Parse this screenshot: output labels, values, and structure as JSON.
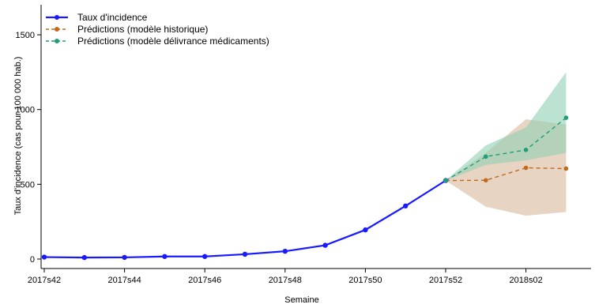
{
  "chart_data": {
    "type": "line",
    "xlabel": "Semaine",
    "ylabel": "Taux d'incidence (cas pour 100 000 hab.)",
    "x_ticks": [
      "2017s42",
      "2017s44",
      "2017s46",
      "2017s48",
      "2017s50",
      "2017s52",
      "2018s02"
    ],
    "y_ticks": [
      0,
      500,
      1000,
      1500
    ],
    "weeks": [
      "2017s42",
      "2017s43",
      "2017s44",
      "2017s45",
      "2017s46",
      "2017s47",
      "2017s48",
      "2017s49",
      "2017s50",
      "2017s51",
      "2017s52",
      "2018s01",
      "2018s02",
      "2018s03"
    ],
    "ylim": [
      -50,
      1700
    ],
    "legend_position": "top-left",
    "series": [
      {
        "name": "Taux d'incidence",
        "color": "#1a1aff",
        "style": "solid",
        "x": [
          "2017s42",
          "2017s43",
          "2017s44",
          "2017s45",
          "2017s46",
          "2017s47",
          "2017s48",
          "2017s49",
          "2017s50",
          "2017s51",
          "2017s52"
        ],
        "values": [
          13,
          10,
          11,
          17,
          17,
          32,
          52,
          92,
          195,
          355,
          525
        ]
      },
      {
        "name": "Prédictions (modèle historique)",
        "color": "#c06a1c",
        "style": "dashed",
        "band_color": "#d9b89a",
        "x": [
          "2017s52",
          "2018s01",
          "2018s02",
          "2018s03"
        ],
        "values": [
          525,
          527,
          610,
          605
        ],
        "lower": [
          525,
          350,
          290,
          315
        ],
        "upper": [
          525,
          710,
          935,
          900
        ]
      },
      {
        "name": "Prédictions (modèle délivrance médicaments)",
        "color": "#1f9e77",
        "style": "dashed",
        "band_color": "#8fd0b2",
        "x": [
          "2017s52",
          "2018s01",
          "2018s02",
          "2018s03"
        ],
        "values": [
          525,
          685,
          730,
          945
        ],
        "lower": [
          525,
          630,
          660,
          710
        ],
        "upper": [
          525,
          760,
          880,
          1250
        ]
      }
    ]
  }
}
